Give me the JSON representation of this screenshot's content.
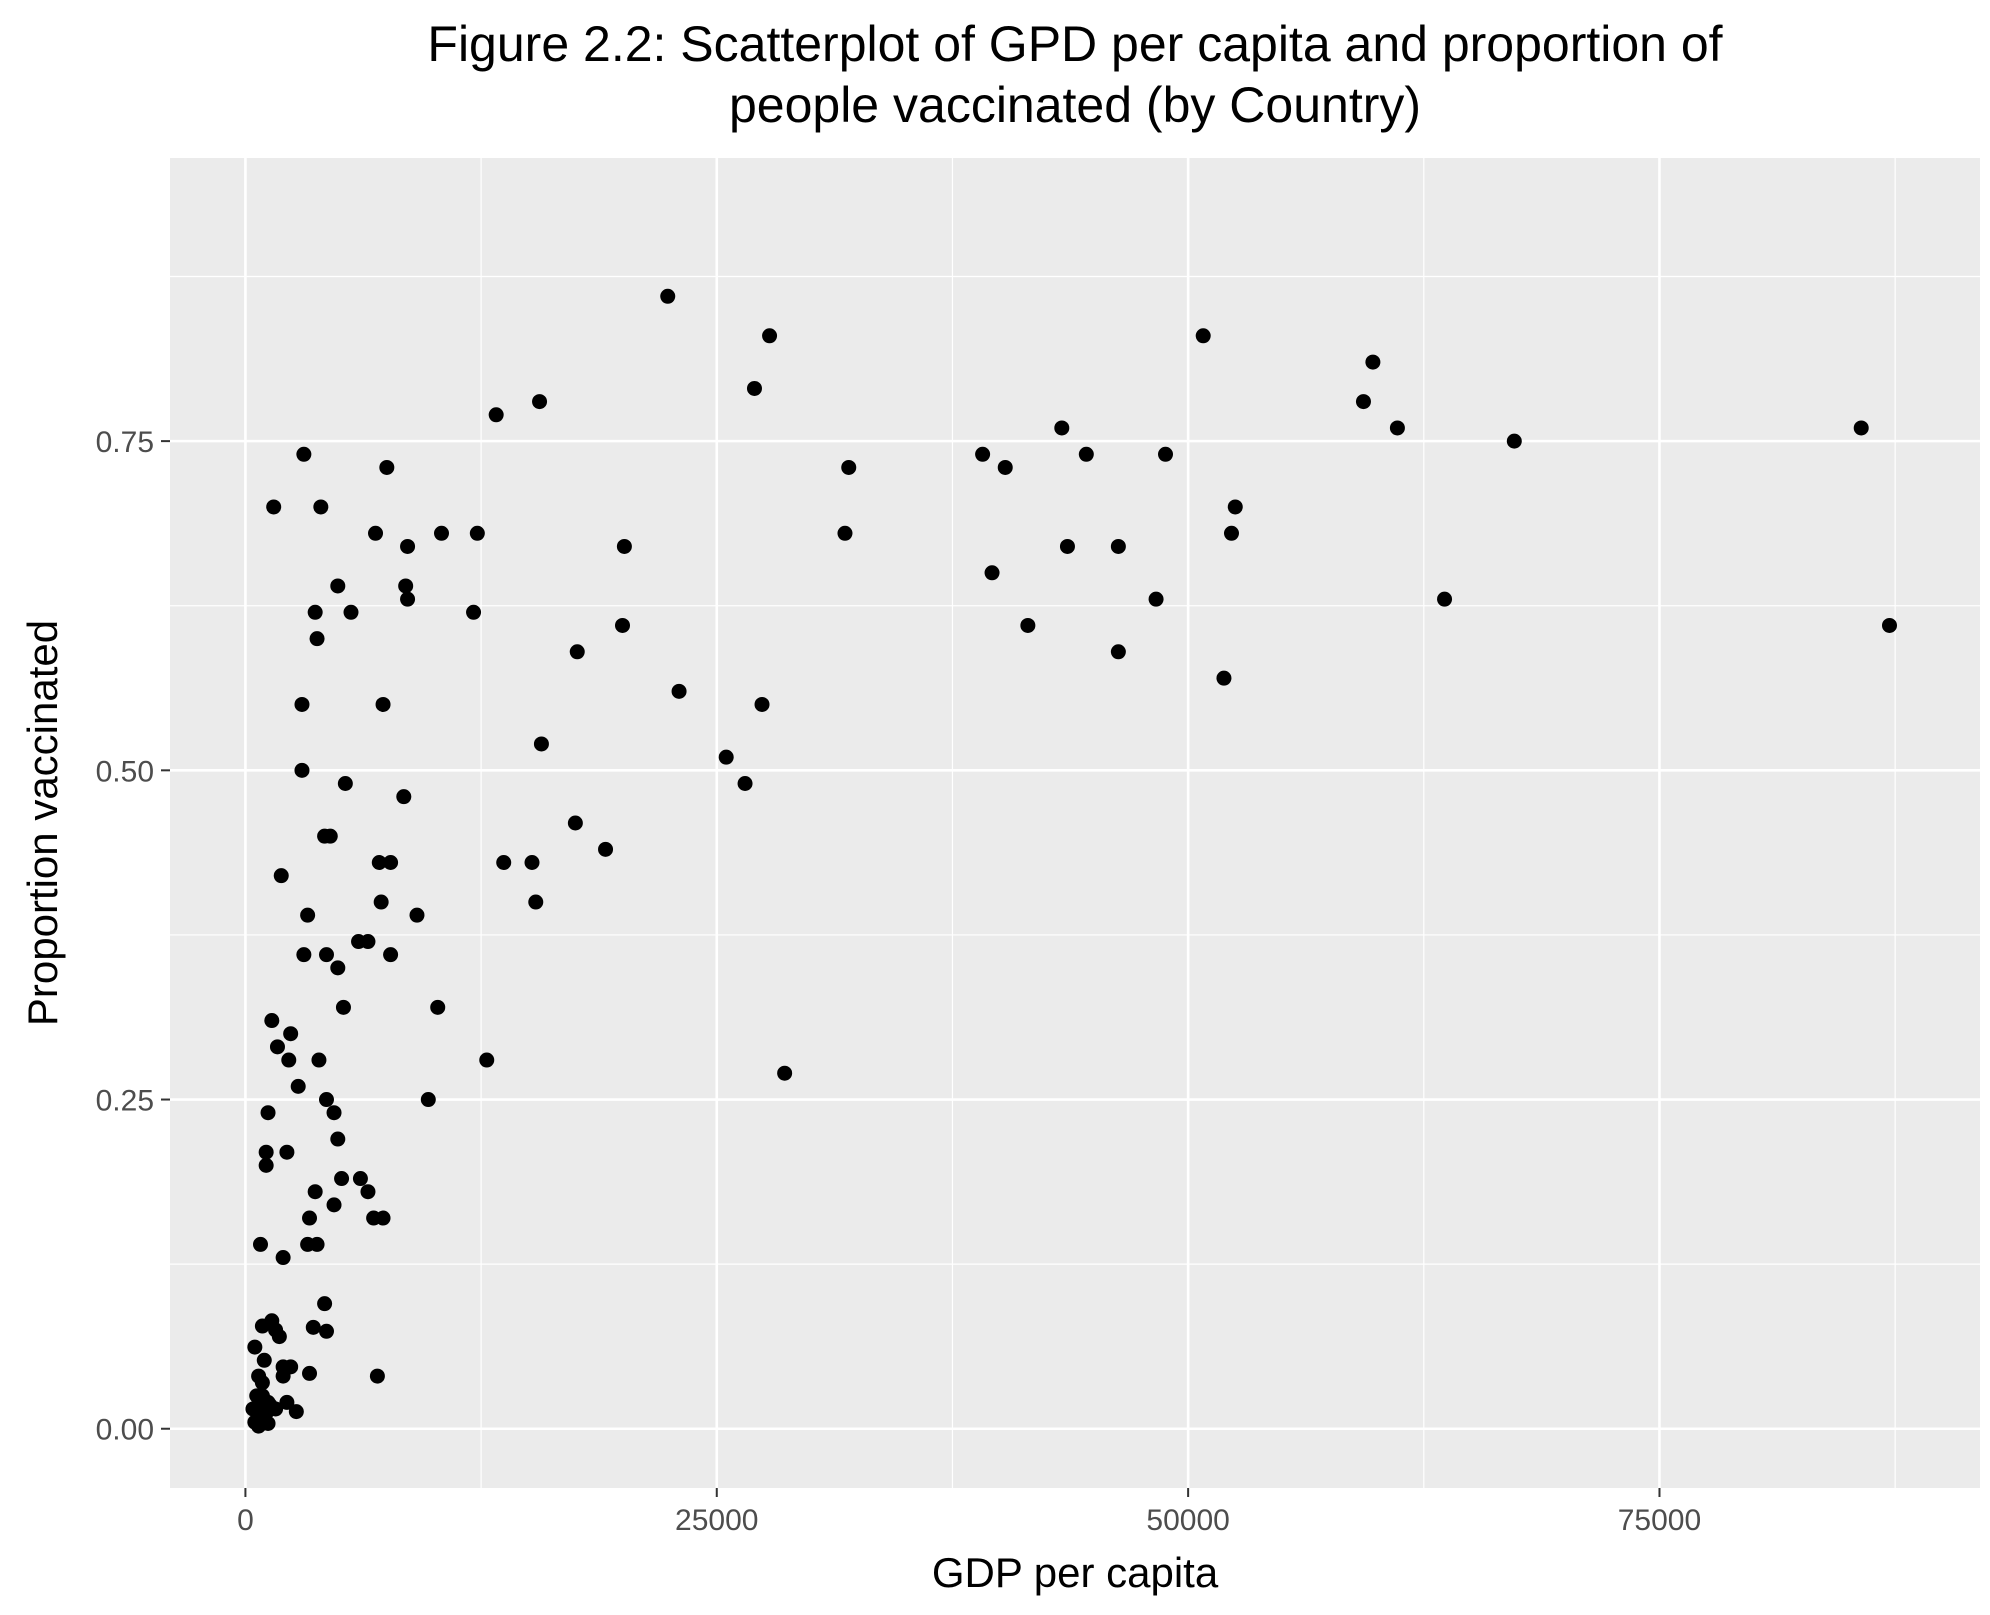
{
  "chart_data": {
    "type": "scatter",
    "title_lines": [
      "Figure 2.2: Scatterplot of GPD per capita and proportion of",
      "people vaccinated (by Country)"
    ],
    "xlabel": "GDP per capita",
    "ylabel": "Proportion vaccinated",
    "xlim": [
      -4000,
      92000
    ],
    "ylim": [
      -0.045,
      0.965
    ],
    "x_ticks": [
      0,
      25000,
      50000,
      75000
    ],
    "x_tick_labels": [
      "0",
      "25000",
      "50000",
      "75000"
    ],
    "y_ticks": [
      0,
      0.25,
      0.5,
      0.75
    ],
    "y_tick_labels": [
      "0.00",
      "0.25",
      "0.50",
      "0.75"
    ],
    "grid": true,
    "colors": {
      "panel": "#ebebeb",
      "grid": "#ffffff",
      "point": "#000000",
      "tick_text": "#4d4d4d"
    },
    "points": [
      [
        22400,
        0.86
      ],
      [
        27800,
        0.83
      ],
      [
        27000,
        0.79
      ],
      [
        15600,
        0.78
      ],
      [
        13300,
        0.77
      ],
      [
        32000,
        0.73
      ],
      [
        31800,
        0.68
      ],
      [
        20100,
        0.67
      ],
      [
        20000,
        0.61
      ],
      [
        17600,
        0.59
      ],
      [
        23000,
        0.56
      ],
      [
        27400,
        0.55
      ],
      [
        15700,
        0.52
      ],
      [
        25500,
        0.51
      ],
      [
        26500,
        0.49
      ],
      [
        17500,
        0.46
      ],
      [
        19100,
        0.44
      ],
      [
        13700,
        0.43
      ],
      [
        15200,
        0.43
      ],
      [
        15400,
        0.4
      ],
      [
        28600,
        0.27
      ],
      [
        12800,
        0.28
      ],
      [
        50800,
        0.83
      ],
      [
        59800,
        0.81
      ],
      [
        59300,
        0.78
      ],
      [
        61100,
        0.76
      ],
      [
        43300,
        0.76
      ],
      [
        85700,
        0.76
      ],
      [
        67300,
        0.75
      ],
      [
        39100,
        0.74
      ],
      [
        44600,
        0.74
      ],
      [
        48800,
        0.74
      ],
      [
        40300,
        0.73
      ],
      [
        52500,
        0.7
      ],
      [
        52300,
        0.68
      ],
      [
        43600,
        0.67
      ],
      [
        46300,
        0.67
      ],
      [
        39600,
        0.65
      ],
      [
        48300,
        0.63
      ],
      [
        63600,
        0.63
      ],
      [
        41500,
        0.61
      ],
      [
        87200,
        0.61
      ],
      [
        46300,
        0.59
      ],
      [
        51900,
        0.57
      ],
      [
        3100,
        0.74
      ],
      [
        7500,
        0.73
      ],
      [
        1500,
        0.7
      ],
      [
        4000,
        0.7
      ],
      [
        6900,
        0.68
      ],
      [
        10400,
        0.68
      ],
      [
        12300,
        0.68
      ],
      [
        8600,
        0.67
      ],
      [
        4900,
        0.64
      ],
      [
        8500,
        0.64
      ],
      [
        8600,
        0.63
      ],
      [
        12100,
        0.62
      ],
      [
        3700,
        0.62
      ],
      [
        5600,
        0.62
      ],
      [
        3800,
        0.6
      ],
      [
        3000,
        0.55
      ],
      [
        7300,
        0.55
      ],
      [
        3000,
        0.5
      ],
      [
        5300,
        0.49
      ],
      [
        8400,
        0.48
      ],
      [
        4200,
        0.45
      ],
      [
        4500,
        0.45
      ],
      [
        7100,
        0.43
      ],
      [
        7700,
        0.43
      ],
      [
        1900,
        0.42
      ],
      [
        7200,
        0.4
      ],
      [
        3300,
        0.39
      ],
      [
        9100,
        0.39
      ],
      [
        6000,
        0.37
      ],
      [
        6500,
        0.37
      ],
      [
        3100,
        0.36
      ],
      [
        4300,
        0.36
      ],
      [
        7700,
        0.36
      ],
      [
        4900,
        0.35
      ],
      [
        5200,
        0.32
      ],
      [
        10200,
        0.32
      ],
      [
        1400,
        0.31
      ],
      [
        1700,
        0.29
      ],
      [
        2400,
        0.3
      ],
      [
        2300,
        0.28
      ],
      [
        3900,
        0.28
      ],
      [
        2800,
        0.26
      ],
      [
        4300,
        0.25
      ],
      [
        9700,
        0.25
      ],
      [
        1200,
        0.24
      ],
      [
        4700,
        0.24
      ],
      [
        4900,
        0.22
      ],
      [
        1100,
        0.21
      ],
      [
        2200,
        0.21
      ],
      [
        1100,
        0.2
      ],
      [
        5100,
        0.19
      ],
      [
        6100,
        0.19
      ],
      [
        3700,
        0.18
      ],
      [
        6500,
        0.18
      ],
      [
        4700,
        0.17
      ],
      [
        3400,
        0.16
      ],
      [
        6800,
        0.16
      ],
      [
        7300,
        0.16
      ],
      [
        800,
        0.14
      ],
      [
        3300,
        0.14
      ],
      [
        3800,
        0.14
      ],
      [
        2000,
        0.13
      ],
      [
        4200,
        0.095
      ],
      [
        900,
        0.078
      ],
      [
        1400,
        0.082
      ],
      [
        1600,
        0.075
      ],
      [
        1800,
        0.07
      ],
      [
        3600,
        0.077
      ],
      [
        4300,
        0.074
      ],
      [
        500,
        0.062
      ],
      [
        1000,
        0.052
      ],
      [
        2000,
        0.047
      ],
      [
        2400,
        0.047
      ],
      [
        3400,
        0.042
      ],
      [
        7000,
        0.04
      ],
      [
        700,
        0.04
      ],
      [
        2000,
        0.04
      ],
      [
        900,
        0.035
      ],
      [
        900,
        0.025
      ],
      [
        1200,
        0.02
      ],
      [
        2200,
        0.02
      ],
      [
        400,
        0.015
      ],
      [
        700,
        0.015
      ],
      [
        1100,
        0.012
      ],
      [
        2700,
        0.013
      ],
      [
        1600,
        0.015
      ],
      [
        500,
        0.005
      ],
      [
        1000,
        0.01
      ],
      [
        700,
        0.002
      ],
      [
        1200,
        0.004
      ],
      [
        1300,
        0.018
      ],
      [
        600,
        0.025
      ]
    ]
  }
}
